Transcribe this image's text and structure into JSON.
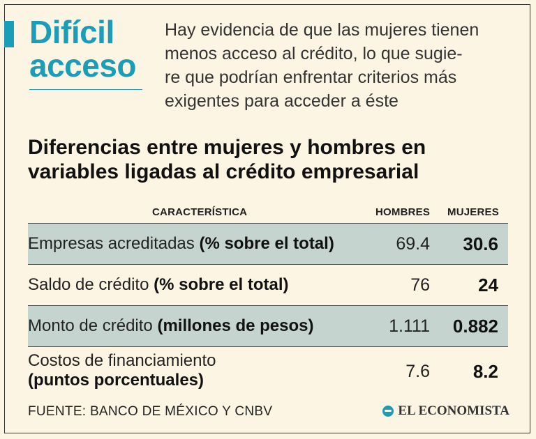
{
  "header": {
    "headline_line1": "Difícil",
    "headline_line2": "acceso",
    "deck_lines": [
      "Hay evidencia de que las mujeres tienen",
      "menos acceso al crédito, lo que sugie-",
      "re que podrían enfrentar criterios más",
      "exigentes para acceder a éste"
    ]
  },
  "subtitle_lines": [
    "Diferencias entre mujeres y hombres en",
    "variables ligadas al crédito empresarial"
  ],
  "chart_data": {
    "type": "table",
    "columns": [
      "CARACTERÍSTICA",
      "HOMBRES",
      "MUJERES"
    ],
    "rows": [
      {
        "label": "Empresas acreditadas",
        "unit": "(% sobre el total)",
        "hombres": "69.4",
        "mujeres": "30.6"
      },
      {
        "label": "Saldo de crédito",
        "unit": "(% sobre el total)",
        "hombres": "76",
        "mujeres": "24"
      },
      {
        "label": "Monto de crédito",
        "unit": "(millones de pesos)",
        "hombres": "1.111",
        "mujeres": "0.882"
      },
      {
        "label": "Costos de financiamiento",
        "unit": "(puntos porcentuales)",
        "hombres": "7.6",
        "mujeres": "8.2"
      }
    ]
  },
  "footer": {
    "source": "FUENTE: BANCO DE MÉXICO Y CNBV",
    "brand": "EL ECONOMISTA"
  },
  "colors": {
    "accent": "#1b9db8",
    "background": "#fdf5e3",
    "row_shade": "#c6d4cf"
  }
}
